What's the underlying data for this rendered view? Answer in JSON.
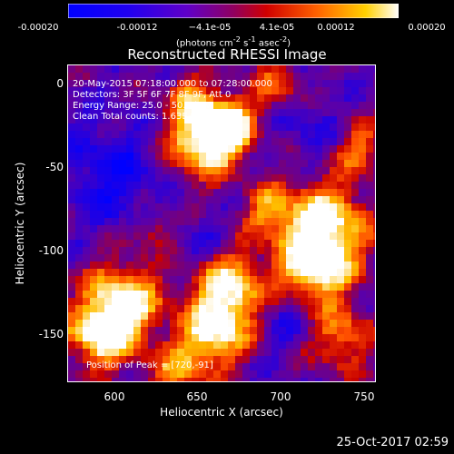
{
  "colorbar": {
    "ticks": [
      "-0.00020",
      "-0.00012",
      "−4.1e-05",
      "4.1e-05",
      "0.00012",
      "0.00020"
    ],
    "units_prefix": "(photons cm",
    "units_sup1": "-2",
    "units_mid1": " s",
    "units_sup2": "-1",
    "units_mid2": " asec",
    "units_sup3": "-2",
    "units_suffix": ")",
    "colormap": [
      "#0000ff",
      "#3000e0",
      "#7000c0",
      "#c00000",
      "#ff5000",
      "#ffa000",
      "#ffff00",
      "#ffffff"
    ]
  },
  "plot": {
    "title": "Reconstructed RHESSI Image",
    "info_lines": [
      "20-May-2015 07:18:00.000 to 07:28:00.000",
      "Detectors: 3F 5F 6F 7F 8F 9F, Att 0",
      "Energy Range: 25.0 - 50.0 keV",
      "Clean     Total counts: 1.63E+04"
    ],
    "peak_text": "Position of Peak = [720,-91]",
    "xlabel": "Heliocentric X (arcsec)",
    "ylabel": "Heliocentric Y (arcsec)",
    "xticks": [
      "600",
      "650",
      "700",
      "750"
    ],
    "yticks": [
      "0",
      "-50",
      "-100",
      "-150"
    ]
  },
  "footer": {
    "timestamp": "25-Oct-2017 02:59"
  }
}
